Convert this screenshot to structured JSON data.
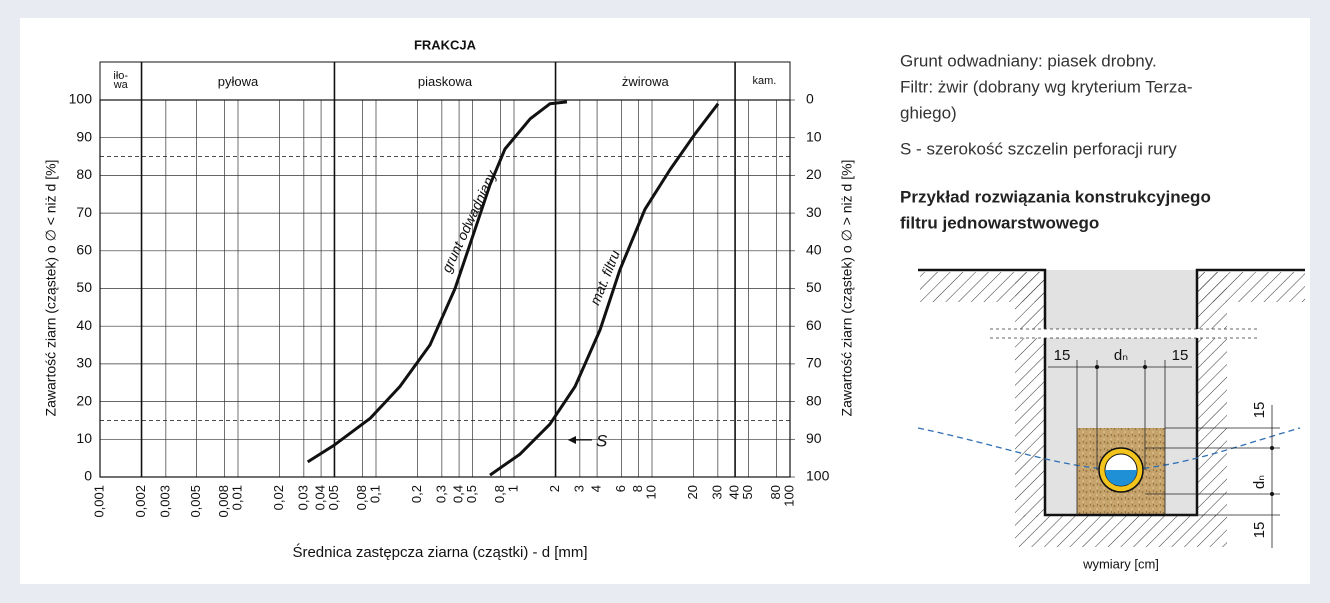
{
  "chart_data": {
    "type": "line",
    "title": "FRAKCJA",
    "fractions": [
      {
        "label": "iło-wa",
        "from": 0.001,
        "to": 0.002
      },
      {
        "label": "pyłowa",
        "from": 0.002,
        "to": 0.05
      },
      {
        "label": "piaskowa",
        "from": 0.05,
        "to": 2
      },
      {
        "label": "żwirowa",
        "from": 2,
        "to": 40
      },
      {
        "label": "kam.",
        "from": 40,
        "to": 100
      }
    ],
    "x_label": "Średnica zastępcza ziarna (cząstki) - d [mm]",
    "y_label": "Zawartość ziarn (cząstek) o ∅ < niż d [%]",
    "y2_label": "Zawartość ziarn (cząstek) o ∅ > niż d [%]",
    "log_x": true,
    "xlim": [
      0.001,
      100
    ],
    "xticks": [
      {
        "value": 0.001,
        "label": "0,001"
      },
      {
        "value": 0.002,
        "label": "0,002"
      },
      {
        "value": 0.003,
        "label": "0,003"
      },
      {
        "value": 0.005,
        "label": "0,005"
      },
      {
        "value": 0.008,
        "label": "0,008"
      },
      {
        "value": 0.01,
        "label": "0,01"
      },
      {
        "value": 0.02,
        "label": "0,02"
      },
      {
        "value": 0.03,
        "label": "0,03"
      },
      {
        "value": 0.04,
        "label": "0,04"
      },
      {
        "value": 0.05,
        "label": "0,05"
      },
      {
        "value": 0.08,
        "label": "0,08"
      },
      {
        "value": 0.1,
        "label": "0,1"
      },
      {
        "value": 0.2,
        "label": "0,2"
      },
      {
        "value": 0.3,
        "label": "0,3"
      },
      {
        "value": 0.4,
        "label": "0,4"
      },
      {
        "value": 0.5,
        "label": "0,5"
      },
      {
        "value": 0.8,
        "label": "0,8"
      },
      1,
      2,
      3,
      4,
      6,
      8,
      10,
      20,
      30,
      40,
      50,
      80,
      100
    ],
    "ylim": [
      0,
      100
    ],
    "yticks": [
      0,
      10,
      20,
      30,
      40,
      50,
      60,
      70,
      80,
      90,
      100
    ],
    "y2lim": [
      100,
      0
    ],
    "y2ticks": [
      0,
      10,
      20,
      30,
      40,
      50,
      60,
      70,
      80,
      90,
      100
    ],
    "grid": true,
    "reference_lines": [
      15,
      85
    ],
    "series": [
      {
        "name": "grunt odwadniany",
        "color": "#111111",
        "x": [
          0.032,
          0.05,
          0.091,
          0.149,
          0.246,
          0.374,
          0.52,
          0.67,
          0.86,
          1.31,
          1.82,
          2.42
        ],
        "values": [
          4,
          8.5,
          15.6,
          24,
          35,
          50,
          65.5,
          77.5,
          87,
          95,
          99,
          99.5
        ]
      },
      {
        "name": "mat. filtru",
        "color": "#111111",
        "x": [
          0.67,
          1.1,
          1.82,
          2.77,
          4.2,
          5.86,
          8.89,
          13.5,
          20.5,
          30.1
        ],
        "values": [
          0.5,
          6,
          14,
          24,
          39,
          55,
          71,
          81.5,
          91,
          99
        ]
      }
    ],
    "annotations": [
      {
        "text": "S"
      }
    ]
  },
  "description": {
    "lines": [
      "Grunt odwadniany: piasek drobny.",
      "Filtr: żwir (dobrany wg kryterium Terza-",
      "ghiego)",
      "S - szerokość szczelin perforacji rury"
    ],
    "heading": [
      "Przykład rozwiązania konstrukcyjnego",
      "filtru jednowarstwowego"
    ]
  },
  "diagram": {
    "top_dims": [
      "15",
      "dₙ",
      "15"
    ],
    "side_dims": [
      "15",
      "dₙ",
      "15"
    ],
    "caption": "wymiary [cm]"
  }
}
